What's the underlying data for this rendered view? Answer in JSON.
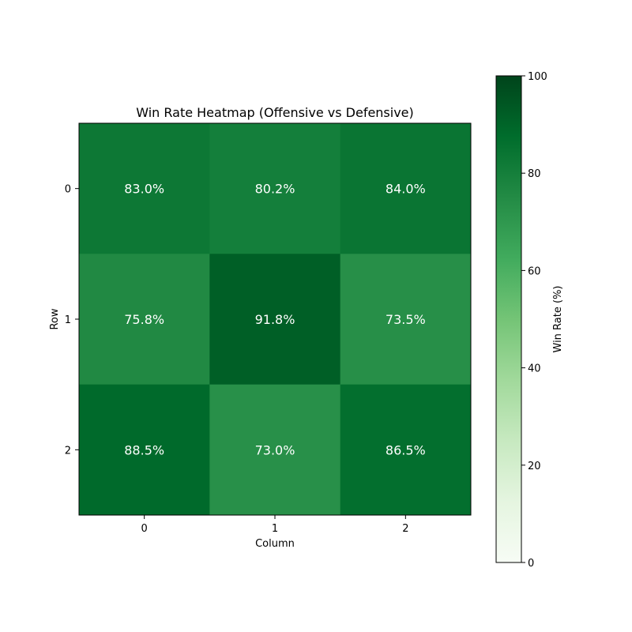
{
  "chart_data": {
    "type": "heatmap",
    "title": "Win Rate Heatmap (Offensive vs Defensive)",
    "xlabel": "Column",
    "ylabel": "Row",
    "x_categories": [
      "0",
      "1",
      "2"
    ],
    "y_categories": [
      "0",
      "1",
      "2"
    ],
    "values": [
      [
        83.0,
        80.2,
        84.0
      ],
      [
        75.8,
        91.8,
        73.5
      ],
      [
        88.5,
        73.0,
        86.5
      ]
    ],
    "cell_labels": [
      [
        "83.0%",
        "80.2%",
        "84.0%"
      ],
      [
        "75.8%",
        "91.8%",
        "73.5%"
      ],
      [
        "88.5%",
        "73.0%",
        "86.5%"
      ]
    ],
    "colorbar": {
      "label": "Win Rate (%)",
      "range": [
        0,
        100
      ],
      "ticks": [
        {
          "value": 0,
          "label": "0"
        },
        {
          "value": 20,
          "label": "20"
        },
        {
          "value": 40,
          "label": "40"
        },
        {
          "value": 60,
          "label": "60"
        },
        {
          "value": 80,
          "label": "80"
        },
        {
          "value": 100,
          "label": "100"
        }
      ],
      "colormap": [
        "#f7fcf5",
        "#e5f5e0",
        "#c7e9c0",
        "#a1d99b",
        "#74c476",
        "#41ab5d",
        "#238b45",
        "#006d2c",
        "#00441b"
      ]
    },
    "grid": false
  }
}
